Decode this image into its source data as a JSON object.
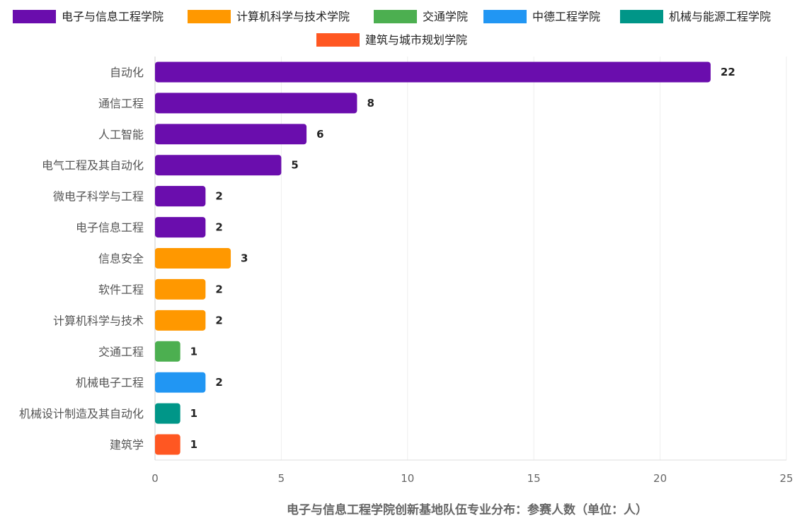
{
  "chart_data": {
    "type": "bar",
    "orientation": "horizontal",
    "title": "",
    "xlabel": "电子与信息工程学院创新基地队伍专业分布：参赛人数（单位：人）",
    "ylabel": "",
    "xlim": [
      0,
      25
    ],
    "xticks": [
      0,
      5,
      10,
      15,
      20,
      25
    ],
    "grid": true,
    "legend_position": "top",
    "data_labels": true,
    "legend": [
      {
        "name": "电子与信息工程学院",
        "color": "#6A0DAD"
      },
      {
        "name": "计算机科学与技术学院",
        "color": "#FF9800"
      },
      {
        "name": "交通学院",
        "color": "#4CAF50"
      },
      {
        "name": "中德工程学院",
        "color": "#2196F3"
      },
      {
        "name": "机械与能源工程学院",
        "color": "#009688"
      },
      {
        "name": "建筑与城市规划学院",
        "color": "#FF5722"
      }
    ],
    "bars": [
      {
        "category": "自动化",
        "value": 22,
        "group": 0
      },
      {
        "category": "通信工程",
        "value": 8,
        "group": 0
      },
      {
        "category": "人工智能",
        "value": 6,
        "group": 0
      },
      {
        "category": "电气工程及其自动化",
        "value": 5,
        "group": 0
      },
      {
        "category": "微电子科学与工程",
        "value": 2,
        "group": 0
      },
      {
        "category": "电子信息工程",
        "value": 2,
        "group": 0
      },
      {
        "category": "信息安全",
        "value": 3,
        "group": 1
      },
      {
        "category": "软件工程",
        "value": 2,
        "group": 1
      },
      {
        "category": "计算机科学与技术",
        "value": 2,
        "group": 1
      },
      {
        "category": "交通工程",
        "value": 1,
        "group": 2
      },
      {
        "category": "机械电子工程",
        "value": 2,
        "group": 3
      },
      {
        "category": "机械设计制造及其自动化",
        "value": 1,
        "group": 4
      },
      {
        "category": "建筑学",
        "value": 1,
        "group": 5
      }
    ]
  }
}
